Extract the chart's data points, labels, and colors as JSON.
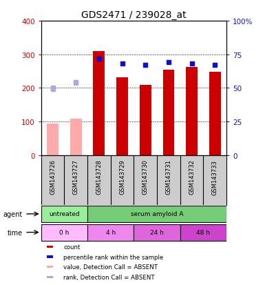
{
  "title": "GDS2471 / 239028_at",
  "samples": [
    "GSM143726",
    "GSM143727",
    "GSM143728",
    "GSM143729",
    "GSM143730",
    "GSM143731",
    "GSM143732",
    "GSM143733"
  ],
  "counts": [
    95,
    108,
    310,
    232,
    210,
    255,
    262,
    248
  ],
  "percentile_ranks": [
    49,
    54,
    72,
    68,
    67,
    69,
    68,
    67
  ],
  "absent_flags": [
    true,
    true,
    false,
    false,
    false,
    false,
    false,
    false
  ],
  "absent_ranks": [
    200,
    217,
    null,
    null,
    null,
    null,
    null,
    null
  ],
  "ylim_left": [
    0,
    400
  ],
  "ylim_right": [
    0,
    100
  ],
  "yticks_left": [
    0,
    100,
    200,
    300,
    400
  ],
  "yticks_right": [
    0,
    25,
    50,
    75,
    100
  ],
  "bar_color_present": "#cc0000",
  "bar_color_absent": "#ffaaaa",
  "dot_color_present": "#1010cc",
  "dot_color_absent": "#aaaadd",
  "agent_labels": [
    {
      "label": "untreated",
      "span": [
        0,
        2
      ],
      "color": "#99ee99"
    },
    {
      "label": "serum amyloid A",
      "span": [
        2,
        8
      ],
      "color": "#77cc77"
    }
  ],
  "time_labels": [
    {
      "label": "0 h",
      "span": [
        0,
        2
      ],
      "color": "#ffbbff"
    },
    {
      "label": "4 h",
      "span": [
        2,
        4
      ],
      "color": "#ee88ee"
    },
    {
      "label": "24 h",
      "span": [
        4,
        6
      ],
      "color": "#dd66dd"
    },
    {
      "label": "48 h",
      "span": [
        6,
        8
      ],
      "color": "#cc44cc"
    }
  ],
  "legend_items": [
    {
      "color": "#cc0000",
      "label": "count"
    },
    {
      "color": "#1010cc",
      "label": "percentile rank within the sample"
    },
    {
      "color": "#ffaaaa",
      "label": "value, Detection Call = ABSENT"
    },
    {
      "color": "#aaaadd",
      "label": "rank, Detection Call = ABSENT"
    }
  ],
  "axis_color_left": "#cc0000",
  "axis_color_right": "#1010cc",
  "sample_box_color": "#cccccc",
  "background_color": "#ffffff"
}
